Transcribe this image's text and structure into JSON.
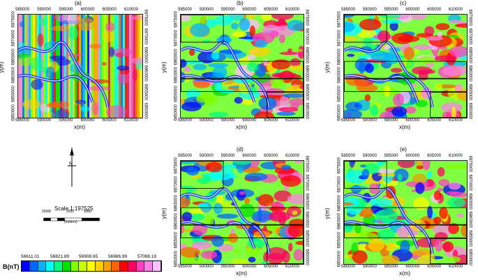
{
  "panels": [
    {
      "id": "a",
      "title": "(a)",
      "rects": false
    },
    {
      "id": "b",
      "title": "(b)",
      "rects": true
    },
    {
      "id": "c",
      "title": "(c)",
      "rects": true
    },
    {
      "id": "d",
      "title": "(d)",
      "rects": true
    },
    {
      "id": "e",
      "title": "(e)",
      "rects": true
    }
  ],
  "x_ticks": [
    "585000",
    "590000",
    "595000",
    "600000",
    "605000",
    "610000"
  ],
  "y_ticks": [
    "6875000",
    "6870000",
    "6865000",
    "6860000",
    "6855000",
    "6850000"
  ],
  "x_label": "x(m)",
  "y_label": "y(m)",
  "north": {
    "label": "N"
  },
  "scale": {
    "text": "Scale 1:197525",
    "ticks": [
      "2500",
      "0",
      "2500",
      "5000"
    ],
    "unit": "(meters)"
  },
  "colorbar": {
    "label": "B(nT)",
    "values": [
      "56611.01",
      "56821.89",
      "56908.65",
      "56986.99",
      "57088.19"
    ],
    "colors": [
      "#0000ff",
      "#0066ff",
      "#00b4ff",
      "#00ffff",
      "#00ff80",
      "#00e000",
      "#80ff00",
      "#c8ff00",
      "#ffff00",
      "#ffd000",
      "#ffa000",
      "#ff6000",
      "#ff0000",
      "#ff0060",
      "#ff40c0",
      "#ff80e8",
      "#ffc0ff"
    ]
  }
}
